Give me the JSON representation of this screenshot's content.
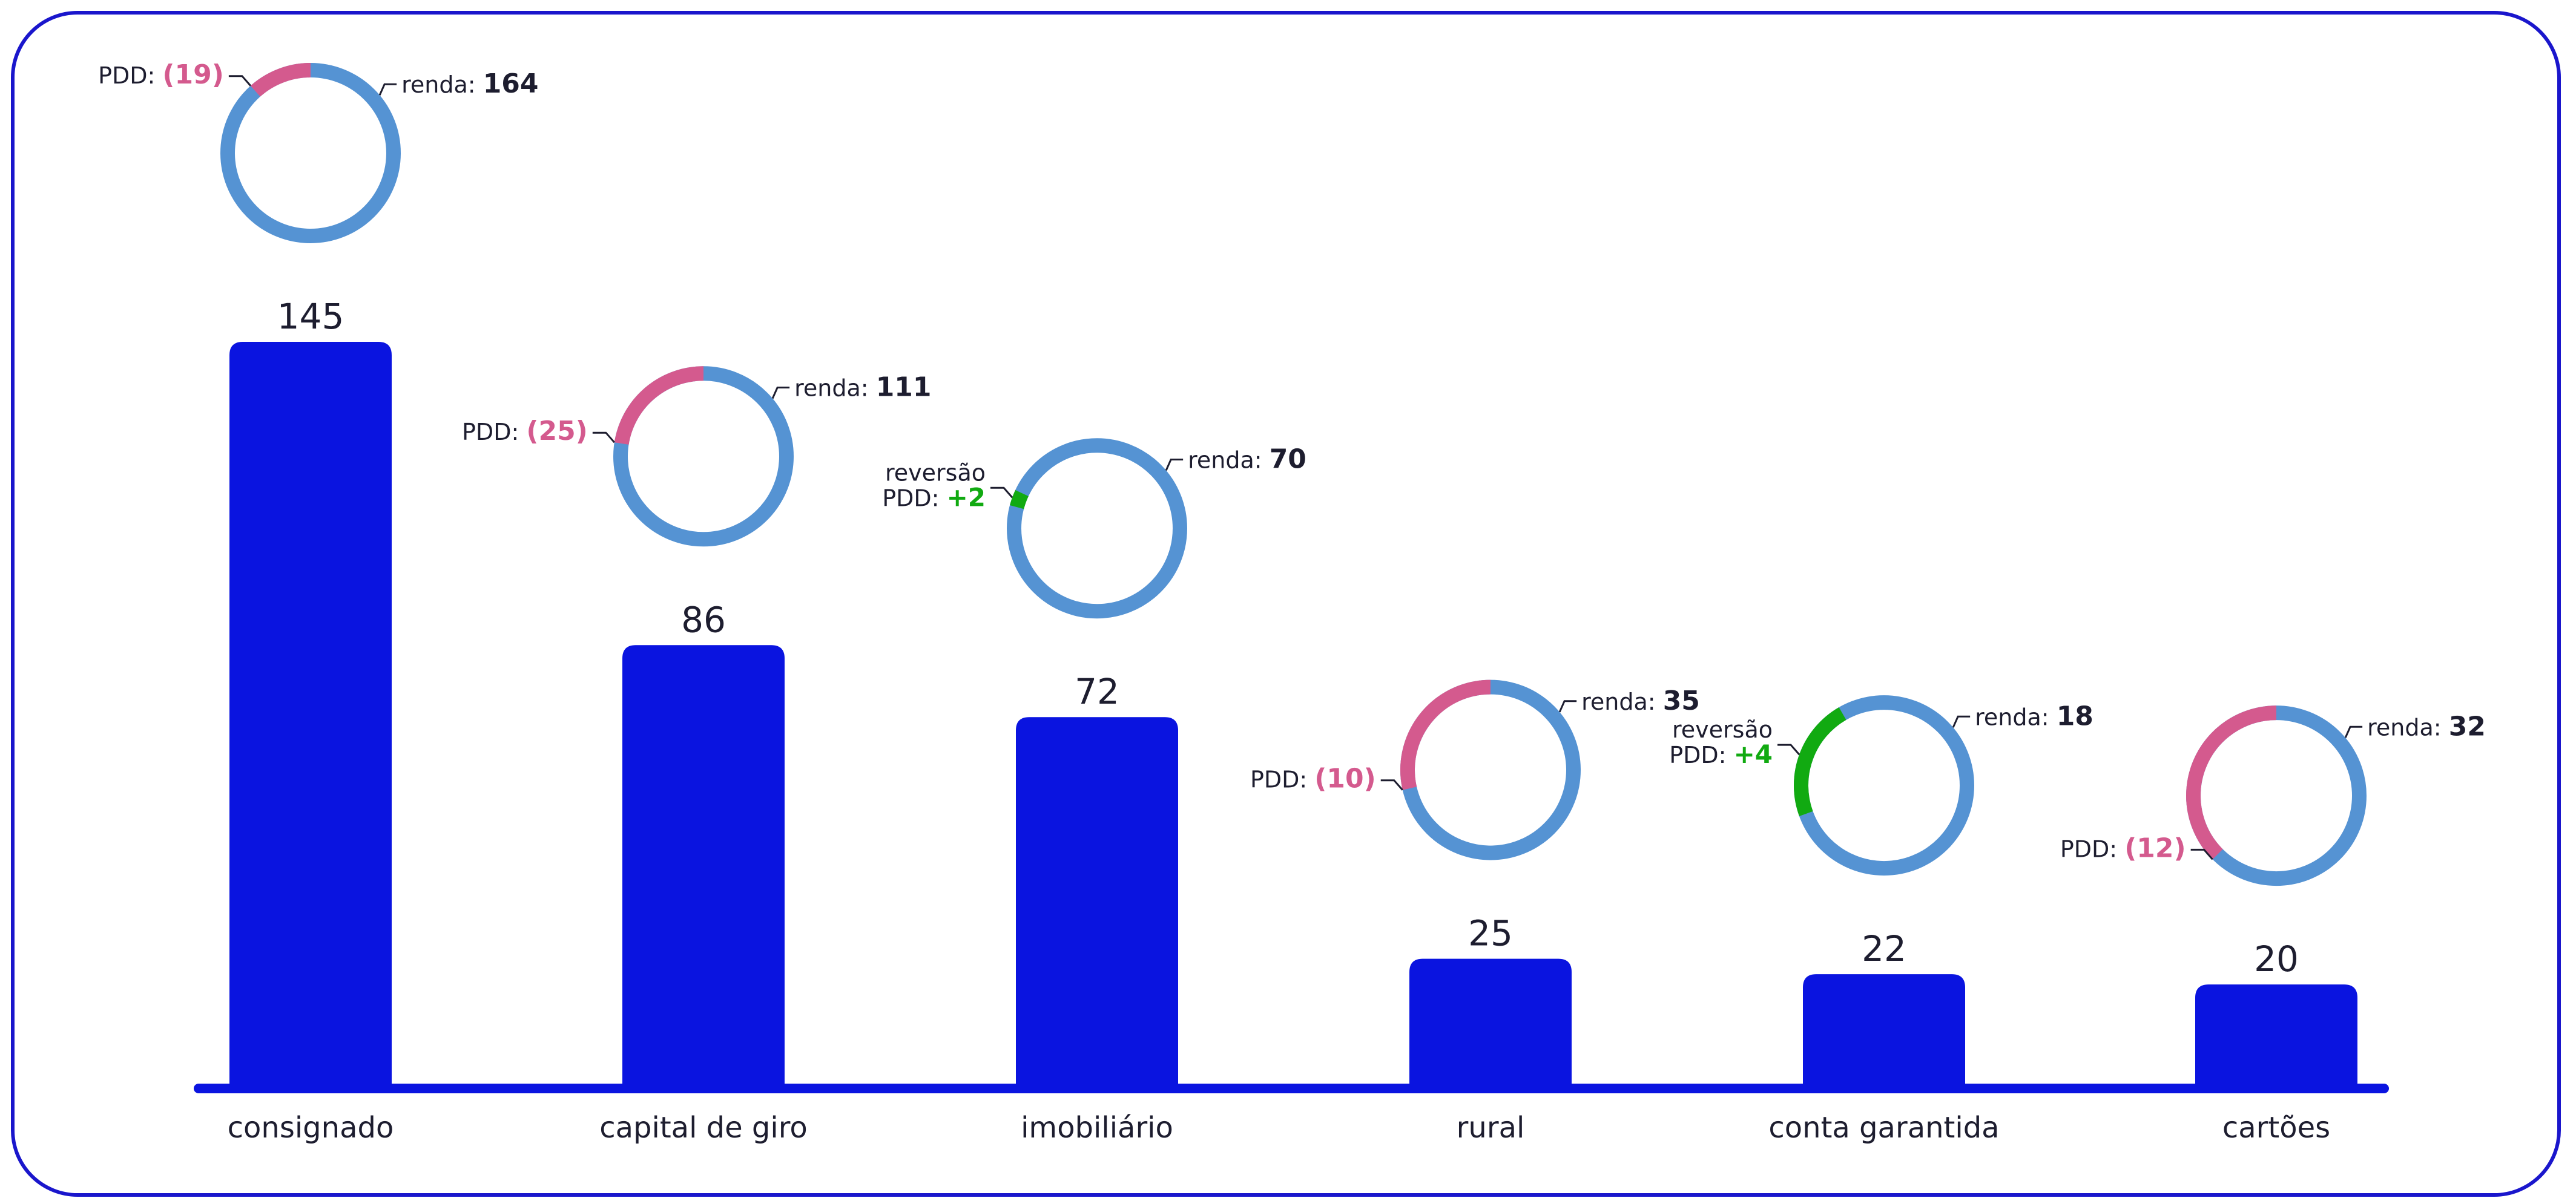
{
  "chart_data": {
    "type": "bar",
    "categories": [
      "consignado",
      "capital de giro",
      "imobiliário",
      "rural",
      "conta garantida",
      "cartões"
    ],
    "values": [
      145,
      86,
      72,
      25,
      22,
      20
    ],
    "ylim": [
      0,
      145
    ],
    "colors": {
      "bar": "#0a14e0",
      "axis": "#0a14e0",
      "renda_ring": "#5593d3",
      "pdd_negative": "#d45a8e",
      "pdd_reversal": "#11aa11",
      "text": "#1d1d2f"
    },
    "donuts": [
      {
        "category": "consignado",
        "renda_label": "renda:",
        "renda": "164",
        "pdd_label": "PDD:",
        "pdd": "(19)",
        "pdd_value": -19
      },
      {
        "category": "capital de giro",
        "renda_label": "renda:",
        "renda": "111",
        "pdd_label": "PDD:",
        "pdd": "(25)",
        "pdd_value": -25
      },
      {
        "category": "imobiliário",
        "renda_label": "renda:",
        "renda": "70",
        "pdd_label_line1": "reversão",
        "pdd_label": "PDD:",
        "pdd": "+2",
        "pdd_value": 2
      },
      {
        "category": "rural",
        "renda_label": "renda:",
        "renda": "35",
        "pdd_label": "PDD:",
        "pdd": "(10)",
        "pdd_value": -10
      },
      {
        "category": "conta garantida",
        "renda_label": "renda:",
        "renda": "18",
        "pdd_label_line1": "reversão",
        "pdd_label": "PDD:",
        "pdd": "+4",
        "pdd_value": 4
      },
      {
        "category": "cartões",
        "renda_label": "renda:",
        "renda": "32",
        "pdd_label": "PDD:",
        "pdd": "(12)",
        "pdd_value": -12
      }
    ]
  }
}
